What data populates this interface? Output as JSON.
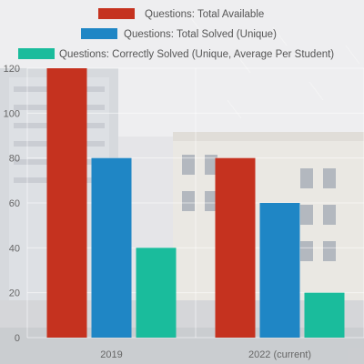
{
  "chart_data": {
    "type": "bar",
    "title": "",
    "xlabel": "",
    "ylabel": "",
    "categories": [
      "2019",
      "2022 (current)"
    ],
    "series": [
      {
        "name": "Questions: Total Available",
        "values": [
          120,
          80
        ],
        "color": "#c5321f"
      },
      {
        "name": "Questions: Total Solved (Unique)",
        "values": [
          80,
          60
        ],
        "color": "#1f86c5"
      },
      {
        "name": "Questions: Correctly Solved (Unique, Average Per Student)",
        "values": [
          40,
          20
        ],
        "color": "#1abc9c"
      }
    ],
    "ylim": [
      0,
      120
    ],
    "yticks": [
      0,
      20,
      40,
      60,
      80,
      100,
      120
    ],
    "grid": true,
    "legend_position": "top"
  },
  "background": {
    "description_icon": "building-photo"
  }
}
